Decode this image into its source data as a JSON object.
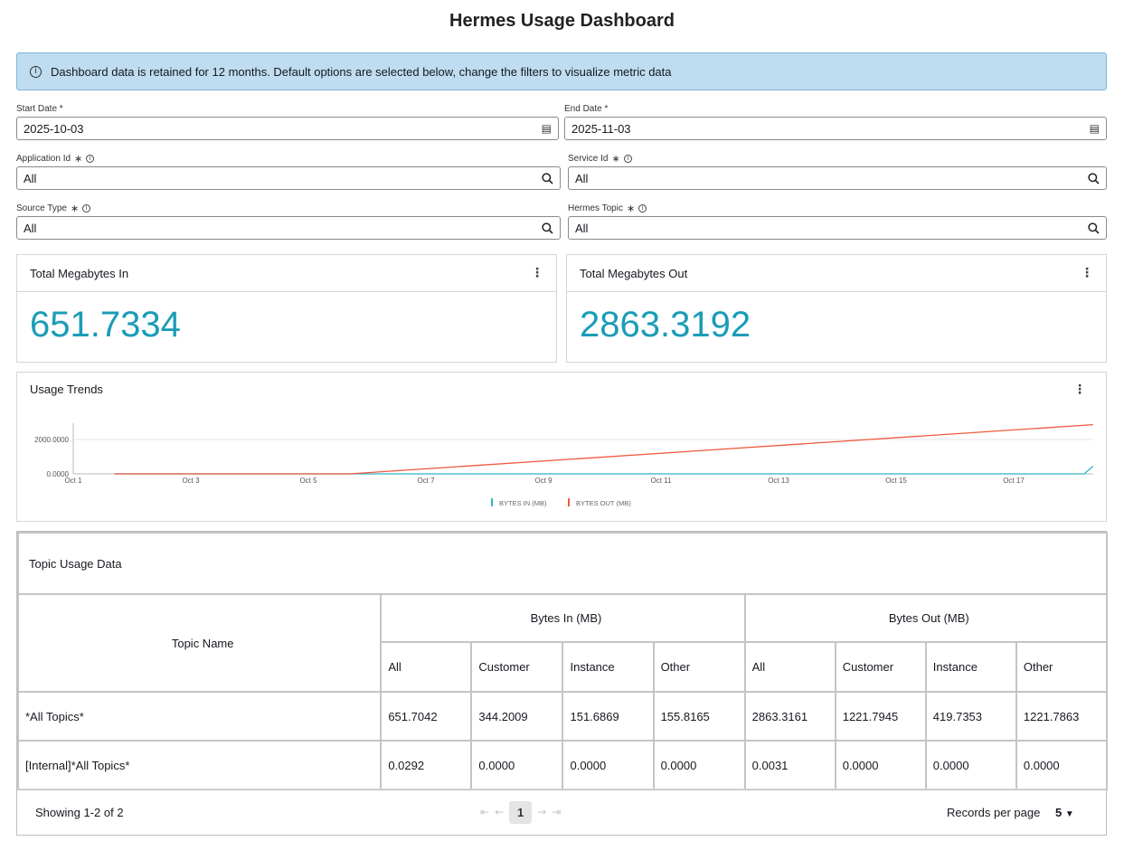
{
  "page_title": "Hermes Usage Dashboard",
  "banner": {
    "icon": "info-icon",
    "text": "Dashboard data is retained for 12 months. Default options are selected below, change the filters to visualize metric data"
  },
  "filters": {
    "start_date": {
      "label": "Start Date *",
      "value": "2025-10-03",
      "icon": "calendar-icon"
    },
    "end_date": {
      "label": "End Date *",
      "value": "2025-11-03",
      "icon": "calendar-icon"
    },
    "application_id": {
      "label": "Application Id",
      "value": "All",
      "icon": "search-icon"
    },
    "service_id": {
      "label": "Service Id",
      "value": "All",
      "icon": "search-icon"
    },
    "source_type": {
      "label": "Source Type",
      "value": "All",
      "icon": "search-icon"
    },
    "hermes_topic": {
      "label": "Hermes Topic",
      "value": "All",
      "icon": "search-icon"
    }
  },
  "metrics": {
    "in": {
      "title": "Total Megabytes In",
      "value": "651.7334"
    },
    "out": {
      "title": "Total Megabytes Out",
      "value": "2863.3192"
    }
  },
  "colors": {
    "accent": "#1a9cb7",
    "bytes_in": "#2bb5c8",
    "bytes_out": "#f0593e"
  },
  "chart_data": {
    "type": "line",
    "title": "Usage Trends",
    "x_ticks": [
      "Oct 1",
      "Oct 3",
      "Oct 5",
      "Oct 7",
      "Oct 9",
      "Oct 11",
      "Oct 13",
      "Oct 15",
      "Oct 17"
    ],
    "y_ticks": [
      "0.0000",
      "2000.0000"
    ],
    "ylim": [
      0,
      3200
    ],
    "xlim": [
      1,
      18.35
    ],
    "grid": true,
    "legend_position": "bottom",
    "series": [
      {
        "name": "BYTES IN (MB)",
        "color": "#2bb5c8",
        "points": [
          [
            1.7,
            0
          ],
          [
            5.7,
            0
          ],
          [
            18.2,
            0
          ],
          [
            18.35,
            450
          ]
        ]
      },
      {
        "name": "BYTES OUT (MB)",
        "color": "#f0593e",
        "points": [
          [
            1.7,
            0
          ],
          [
            5.7,
            0
          ],
          [
            18.35,
            2863
          ]
        ]
      }
    ]
  },
  "table": {
    "title": "Topic Usage Data",
    "topic_header": "Topic Name",
    "group_in": "Bytes In (MB)",
    "group_out": "Bytes Out (MB)",
    "sub_headers": [
      "All",
      "Customer",
      "Instance",
      "Other",
      "All",
      "Customer",
      "Instance",
      "Other"
    ],
    "rows": [
      {
        "topic": "*All Topics*",
        "cells": [
          "651.7042",
          "344.2009",
          "151.6869",
          "155.8165",
          "2863.3161",
          "1221.7945",
          "419.7353",
          "1221.7863"
        ]
      },
      {
        "topic": "[Internal]*All Topics*",
        "cells": [
          "0.0292",
          "0.0000",
          "0.0000",
          "0.0000",
          "0.0031",
          "0.0000",
          "0.0000",
          "0.0000"
        ]
      }
    ]
  },
  "pagination": {
    "showing": "Showing 1-2 of 2",
    "current_page": "1",
    "records_label": "Records per page",
    "records_value": "5"
  }
}
